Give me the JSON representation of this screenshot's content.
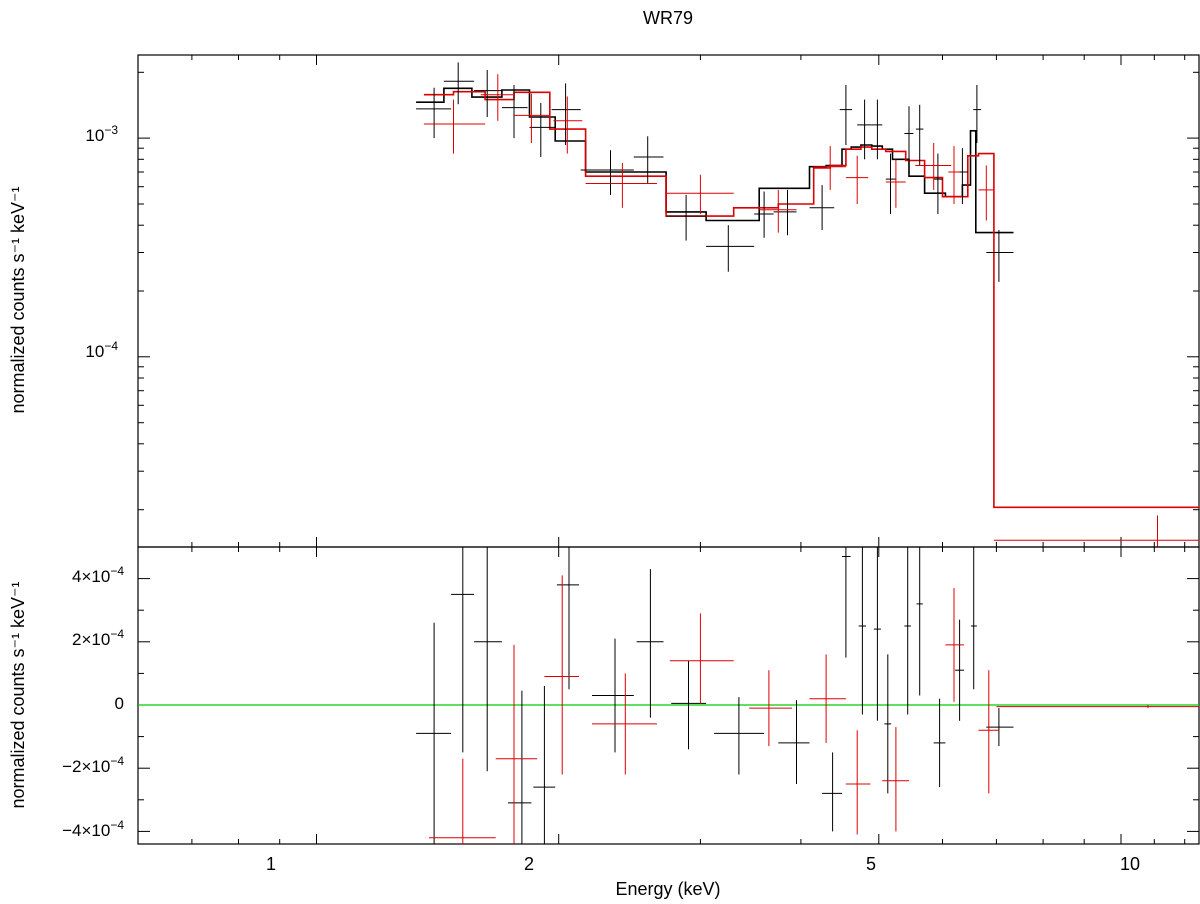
{
  "chart_data": [
    {
      "type": "scatter",
      "panel": "spectrum",
      "title": "WR79",
      "ylabel": "normalized counts s⁻¹ keV⁻¹",
      "xscale": "log",
      "yscale": "log",
      "xlim": [
        0.6,
        12.5
      ],
      "ylim": [
        1.35e-05,
        0.0024
      ],
      "y_tick_labels": [
        {
          "value": 0.001,
          "base": "10",
          "exp": "−3"
        },
        {
          "value": 0.0001,
          "base": "10",
          "exp": "−4"
        }
      ],
      "colors": {
        "data1": "#000000",
        "data2": "#dd0000"
      },
      "series": [
        {
          "color": "#000000",
          "points": [
            {
              "x": 1.4,
              "xlo": 1.33,
              "xhi": 1.47,
              "y": 0.00136,
              "ylo": 0.001,
              "yhi": 0.0017
            },
            {
              "x": 1.5,
              "xlo": 1.44,
              "xhi": 1.57,
              "y": 0.00182,
              "ylo": 0.00143,
              "yhi": 0.00222
            },
            {
              "x": 1.63,
              "xlo": 1.57,
              "xhi": 1.7,
              "y": 0.00165,
              "ylo": 0.00125,
              "yhi": 0.00205
            },
            {
              "x": 1.76,
              "xlo": 1.7,
              "xhi": 1.83,
              "y": 0.00138,
              "ylo": 0.001,
              "yhi": 0.00175
            },
            {
              "x": 1.9,
              "xlo": 1.84,
              "xhi": 1.98,
              "y": 0.00112,
              "ylo": 0.00082,
              "yhi": 0.00145
            },
            {
              "x": 2.04,
              "xlo": 1.96,
              "xhi": 2.13,
              "y": 0.00135,
              "ylo": 0.00093,
              "yhi": 0.00178
            },
            {
              "x": 2.32,
              "xlo": 2.13,
              "xhi": 2.48,
              "y": 0.000715,
              "ylo": 0.00055,
              "yhi": 0.00088
            },
            {
              "x": 2.58,
              "xlo": 2.48,
              "xhi": 2.7,
              "y": 0.00082,
              "ylo": 0.00062,
              "yhi": 0.00102
            },
            {
              "x": 2.88,
              "xlo": 2.72,
              "xhi": 3.05,
              "y": 0.00044,
              "ylo": 0.00034,
              "yhi": 0.00055
            },
            {
              "x": 3.25,
              "xlo": 3.05,
              "xhi": 3.5,
              "y": 0.00032,
              "ylo": 0.000245,
              "yhi": 0.0004
            },
            {
              "x": 3.6,
              "xlo": 3.5,
              "xhi": 3.7,
              "y": 0.00045,
              "ylo": 0.00035,
              "yhi": 0.00057
            },
            {
              "x": 3.85,
              "xlo": 3.7,
              "xhi": 3.95,
              "y": 0.00046,
              "ylo": 0.00036,
              "yhi": 0.00058
            },
            {
              "x": 4.25,
              "xlo": 4.1,
              "xhi": 4.4,
              "y": 0.00048,
              "ylo": 0.00038,
              "yhi": 0.00061
            },
            {
              "x": 4.55,
              "xlo": 4.47,
              "xhi": 4.63,
              "y": 0.00135,
              "ylo": 0.00093,
              "yhi": 0.00175
            },
            {
              "x": 4.8,
              "xlo": 4.7,
              "xhi": 4.9,
              "y": 0.00115,
              "ylo": 0.0008,
              "yhi": 0.0015
            },
            {
              "x": 4.98,
              "xlo": 4.9,
              "xhi": 5.05,
              "y": 0.00115,
              "ylo": 0.0008,
              "yhi": 0.0015
            },
            {
              "x": 5.17,
              "xlo": 5.1,
              "xhi": 5.25,
              "y": 0.00065,
              "ylo": 0.00045,
              "yhi": 0.00085
            },
            {
              "x": 5.45,
              "xlo": 5.38,
              "xhi": 5.52,
              "y": 0.00105,
              "ylo": 0.00072,
              "yhi": 0.0014
            },
            {
              "x": 5.62,
              "xlo": 5.56,
              "xhi": 5.68,
              "y": 0.0011,
              "ylo": 0.00075,
              "yhi": 0.00142
            },
            {
              "x": 5.92,
              "xlo": 5.85,
              "xhi": 6.0,
              "y": 0.00065,
              "ylo": 0.00045,
              "yhi": 0.00085
            },
            {
              "x": 6.35,
              "xlo": 6.25,
              "xhi": 6.45,
              "y": 0.0007,
              "ylo": 0.0005,
              "yhi": 0.0009
            },
            {
              "x": 6.62,
              "xlo": 6.55,
              "xhi": 6.7,
              "y": 0.00135,
              "ylo": 0.00095,
              "yhi": 0.00175
            },
            {
              "x": 7.05,
              "xlo": 6.8,
              "xhi": 7.35,
              "y": 0.0003,
              "ylo": 0.00022,
              "yhi": 0.00038
            }
          ],
          "model": {
            "edges": [
              1.33,
              1.44,
              1.56,
              1.7,
              1.84,
              1.98,
              2.16,
              2.5,
              2.72,
              3.05,
              3.55,
              3.85,
              4.1,
              4.3,
              4.5,
              4.62,
              4.75,
              4.9,
              5.05,
              5.2,
              5.45,
              5.7,
              6.05,
              6.35,
              6.5,
              6.6,
              6.7,
              7.35
            ],
            "values": [
              0.00146,
              0.00169,
              0.00154,
              0.00166,
              0.00125,
              0.00097,
              0.0007,
              0.0007,
              0.00046,
              0.00042,
              0.00059,
              0.00059,
              0.00074,
              0.00075,
              0.00089,
              0.00091,
              0.00093,
              0.00092,
              0.00089,
              0.0008,
              0.00067,
              0.00056,
              0.00054,
              0.00061,
              0.00108,
              0.00037,
              0.00037
            ]
          }
        },
        {
          "color": "#dd0000",
          "points": [
            {
              "x": 1.48,
              "xlo": 1.36,
              "xhi": 1.62,
              "y": 0.00116,
              "ylo": 0.00085,
              "yhi": 0.0015
            },
            {
              "x": 1.68,
              "xlo": 1.6,
              "xhi": 1.76,
              "y": 0.00158,
              "ylo": 0.0012,
              "yhi": 0.00196
            },
            {
              "x": 1.85,
              "xlo": 1.76,
              "xhi": 1.95,
              "y": 0.00127,
              "ylo": 0.00095,
              "yhi": 0.0016
            },
            {
              "x": 2.05,
              "xlo": 1.97,
              "xhi": 2.14,
              "y": 0.0012,
              "ylo": 0.00085,
              "yhi": 0.00155
            },
            {
              "x": 2.4,
              "xlo": 2.16,
              "xhi": 2.65,
              "y": 0.00062,
              "ylo": 0.00048,
              "yhi": 0.00077
            },
            {
              "x": 3.0,
              "xlo": 2.72,
              "xhi": 3.3,
              "y": 0.00056,
              "ylo": 0.00045,
              "yhi": 0.00068
            },
            {
              "x": 3.75,
              "xlo": 3.55,
              "xhi": 3.95,
              "y": 0.00047,
              "ylo": 0.00037,
              "yhi": 0.00058
            },
            {
              "x": 4.35,
              "xlo": 4.15,
              "xhi": 4.55,
              "y": 0.00074,
              "ylo": 0.00058,
              "yhi": 0.00092
            },
            {
              "x": 4.7,
              "xlo": 4.55,
              "xhi": 4.85,
              "y": 0.00066,
              "ylo": 0.0005,
              "yhi": 0.00083
            },
            {
              "x": 5.25,
              "xlo": 5.1,
              "xhi": 5.4,
              "y": 0.00063,
              "ylo": 0.00048,
              "yhi": 0.0008
            },
            {
              "x": 5.85,
              "xlo": 5.55,
              "xhi": 6.15,
              "y": 0.00075,
              "ylo": 0.00058,
              "yhi": 0.00095
            },
            {
              "x": 6.2,
              "xlo": 6.1,
              "xhi": 6.3,
              "y": 0.0007,
              "ylo": 0.0005,
              "yhi": 0.00092
            },
            {
              "x": 6.8,
              "xlo": 6.65,
              "xhi": 6.95,
              "y": 0.00058,
              "ylo": 0.00042,
              "yhi": 0.00075
            },
            {
              "x": 11.1,
              "xlo": 6.95,
              "xhi": 12.5,
              "y": 1.45e-05,
              "ylo": 1.3e-05,
              "yhi": 1.88e-05
            }
          ],
          "model": {
            "edges": [
              1.36,
              1.48,
              1.62,
              1.76,
              1.95,
              2.16,
              2.65,
              2.72,
              3.0,
              3.3,
              3.75,
              4.15,
              4.35,
              4.55,
              4.75,
              4.9,
              5.1,
              5.4,
              5.7,
              6.0,
              6.25,
              6.45,
              6.65,
              6.95,
              12.5
            ],
            "values": [
              0.00158,
              0.00163,
              0.0015,
              0.00162,
              0.0011,
              0.00067,
              0.00067,
              0.00044,
              0.00044,
              0.00048,
              0.0005,
              0.00073,
              0.00075,
              0.00089,
              0.00091,
              0.00089,
              0.00087,
              0.00079,
              0.00066,
              0.00054,
              0.00054,
              0.00083,
              0.00085,
              2.05e-05
            ]
          }
        }
      ]
    },
    {
      "type": "scatter",
      "panel": "residuals",
      "xlabel": "Energy (keV)",
      "ylabel": "normalized counts s⁻¹ keV⁻¹",
      "xscale": "log",
      "xlim": [
        0.6,
        12.5
      ],
      "ylim": [
        -0.00044,
        0.0005
      ],
      "x_tick_labels": [
        {
          "value": 1,
          "label": "1"
        },
        {
          "value": 2,
          "label": "2"
        },
        {
          "value": 5,
          "label": "5"
        },
        {
          "value": 10,
          "label": "10"
        }
      ],
      "y_tick_labels": [
        {
          "value": 0.0004,
          "label": "4×10",
          "exp": "−4"
        },
        {
          "value": 0.0002,
          "label": "2×10",
          "exp": "−4"
        },
        {
          "value": 0,
          "label": "0",
          "exp": ""
        },
        {
          "value": -0.0002,
          "label": "−2×10",
          "exp": "−4"
        },
        {
          "value": -0.0004,
          "label": "−4×10",
          "exp": "−4"
        }
      ],
      "zero_line_color": "#00cc00",
      "series": [
        {
          "color": "#000000",
          "points": [
            {
              "x": 1.4,
              "xlo": 1.33,
              "xhi": 1.47,
              "y": -9e-05,
              "ylo": -0.00045,
              "yhi": 0.00026
            },
            {
              "x": 1.52,
              "xlo": 1.47,
              "xhi": 1.57,
              "y": 0.00035,
              "ylo": -0.00015,
              "yhi": 0.0006
            },
            {
              "x": 1.63,
              "xlo": 1.57,
              "xhi": 1.7,
              "y": 0.0002,
              "ylo": -0.00021,
              "yhi": 0.0006
            },
            {
              "x": 1.8,
              "xlo": 1.73,
              "xhi": 1.85,
              "y": -0.00031,
              "ylo": -0.0006,
              "yhi": 4.5e-05
            },
            {
              "x": 1.92,
              "xlo": 1.86,
              "xhi": 1.98,
              "y": -0.00026,
              "ylo": -0.0006,
              "yhi": 6e-05
            },
            {
              "x": 2.06,
              "xlo": 1.99,
              "xhi": 2.12,
              "y": 0.00038,
              "ylo": 5e-05,
              "yhi": 0.00072
            },
            {
              "x": 2.35,
              "xlo": 2.2,
              "xhi": 2.48,
              "y": 3e-05,
              "ylo": -0.00015,
              "yhi": 0.00021
            },
            {
              "x": 2.6,
              "xlo": 2.5,
              "xhi": 2.7,
              "y": 0.0002,
              "ylo": -4e-05,
              "yhi": 0.00043
            },
            {
              "x": 2.9,
              "xlo": 2.76,
              "xhi": 3.05,
              "y": 5e-06,
              "ylo": -0.00014,
              "yhi": 0.00014
            },
            {
              "x": 3.35,
              "xlo": 3.12,
              "xhi": 3.6,
              "y": -9e-05,
              "ylo": -0.00022,
              "yhi": 2.5e-05
            },
            {
              "x": 3.95,
              "xlo": 3.75,
              "xhi": 4.1,
              "y": -0.00012,
              "ylo": -0.00025,
              "yhi": 1.5e-05
            },
            {
              "x": 4.38,
              "xlo": 4.25,
              "xhi": 4.5,
              "y": -0.00028,
              "ylo": -0.0004,
              "yhi": -0.00015
            },
            {
              "x": 4.55,
              "xlo": 4.5,
              "xhi": 4.61,
              "y": 0.00047,
              "ylo": 0.00015,
              "yhi": 0.0008
            },
            {
              "x": 4.77,
              "xlo": 4.72,
              "xhi": 4.82,
              "y": 0.00025,
              "ylo": -3e-05,
              "yhi": 0.0006
            },
            {
              "x": 4.98,
              "xlo": 4.93,
              "xhi": 5.03,
              "y": 0.00024,
              "ylo": -5e-05,
              "yhi": 0.0006
            },
            {
              "x": 5.13,
              "xlo": 5.08,
              "xhi": 5.18,
              "y": -6e-05,
              "ylo": -0.00028,
              "yhi": 0.00016
            },
            {
              "x": 5.43,
              "xlo": 5.38,
              "xhi": 5.48,
              "y": 0.00025,
              "ylo": -3e-05,
              "yhi": 0.0006
            },
            {
              "x": 5.62,
              "xlo": 5.57,
              "xhi": 5.67,
              "y": 0.00032,
              "ylo": 3e-05,
              "yhi": 0.0006
            },
            {
              "x": 5.95,
              "xlo": 5.85,
              "xhi": 6.05,
              "y": -0.00012,
              "ylo": -0.00026,
              "yhi": 2e-05
            },
            {
              "x": 6.3,
              "xlo": 6.22,
              "xhi": 6.38,
              "y": 0.00011,
              "ylo": -5e-05,
              "yhi": 0.00027
            },
            {
              "x": 6.56,
              "xlo": 6.51,
              "xhi": 6.62,
              "y": 0.00025,
              "ylo": 5e-05,
              "yhi": 0.0006
            },
            {
              "x": 7.05,
              "xlo": 6.8,
              "xhi": 7.35,
              "y": -7e-05,
              "ylo": -0.00013,
              "yhi": -1e-05
            }
          ]
        },
        {
          "color": "#dd0000",
          "points": [
            {
              "x": 1.52,
              "xlo": 1.38,
              "xhi": 1.67,
              "y": -0.00042,
              "ylo": -0.0006,
              "yhi": -0.00017
            },
            {
              "x": 1.76,
              "xlo": 1.67,
              "xhi": 1.88,
              "y": -0.00017,
              "ylo": -0.0006,
              "yhi": 0.00019
            },
            {
              "x": 2.02,
              "xlo": 1.92,
              "xhi": 2.12,
              "y": 9e-05,
              "ylo": -0.00022,
              "yhi": 0.00041
            },
            {
              "x": 2.42,
              "xlo": 2.2,
              "xhi": 2.65,
              "y": -6e-05,
              "ylo": -0.00022,
              "yhi": 0.0001
            },
            {
              "x": 3.0,
              "xlo": 2.75,
              "xhi": 3.3,
              "y": 0.00014,
              "ylo": 5e-06,
              "yhi": 0.00029
            },
            {
              "x": 3.65,
              "xlo": 3.45,
              "xhi": 3.9,
              "y": -1e-05,
              "ylo": -0.00013,
              "yhi": 0.00011
            },
            {
              "x": 4.3,
              "xlo": 4.1,
              "xhi": 4.55,
              "y": 2e-05,
              "ylo": -0.00012,
              "yhi": 0.00016
            },
            {
              "x": 4.7,
              "xlo": 4.55,
              "xhi": 4.88,
              "y": -0.00025,
              "ylo": -0.00041,
              "yhi": -8e-05
            },
            {
              "x": 5.25,
              "xlo": 5.05,
              "xhi": 5.45,
              "y": -0.00024,
              "ylo": -0.0004,
              "yhi": -7e-05
            },
            {
              "x": 6.2,
              "xlo": 6.05,
              "xhi": 6.38,
              "y": 0.00019,
              "ylo": 1e-05,
              "yhi": 0.00037
            },
            {
              "x": 6.85,
              "xlo": 6.65,
              "xhi": 7.05,
              "y": -8e-05,
              "ylo": -0.00028,
              "yhi": 0.00011
            },
            {
              "x": 10.8,
              "xlo": 7.0,
              "xhi": 12.5,
              "y": -5e-06,
              "ylo": -1e-05,
              "yhi": 0.0
            }
          ]
        }
      ]
    }
  ]
}
